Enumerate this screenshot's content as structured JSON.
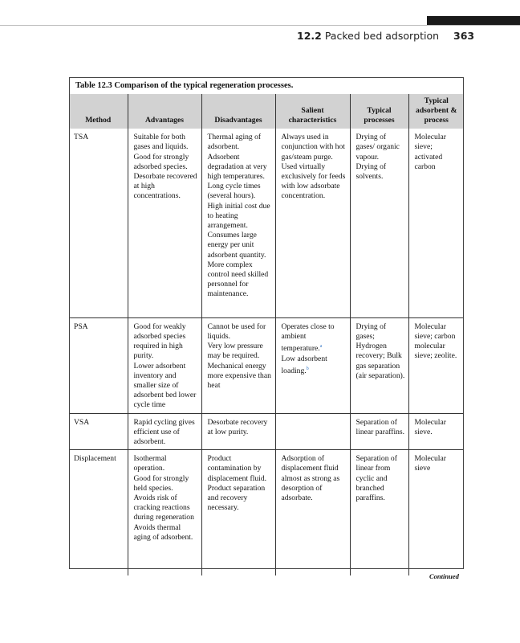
{
  "running_head": {
    "section_number": "12.2",
    "section_title": "Packed bed adsorption",
    "page_number": "363"
  },
  "table": {
    "caption": "Table 12.3  Comparison of the typical regeneration processes.",
    "headers": [
      "Method",
      "Advantages",
      "Disadvantages",
      "Salient characteristics",
      "Typical processes",
      "Typical adsorbent & process"
    ],
    "rows": [
      {
        "method": "TSA",
        "advantages": [
          "Suitable for both gases and liquids.",
          "Good for strongly adsorbed species.",
          "Desorbate recovered at high concentrations."
        ],
        "disadvantages": [
          "Thermal aging of adsorbent.",
          "Adsorbent degradation at very high temperatures.",
          "Long cycle times (several hours).",
          "High initial cost due to heating arrangement.",
          "Consumes large energy per unit adsorbent quantity.",
          "More complex control need skilled personnel for maintenance."
        ],
        "salient": [
          "Always used in conjunction with hot gas/steam purge.",
          "Used virtually exclusively for feeds with low adsorbate concentration."
        ],
        "processes": [
          "Drying of gases/ organic vapour.",
          "Drying of solvents."
        ],
        "adsorbent": [
          "Molecular sieve; activated carbon"
        ]
      },
      {
        "method": "PSA",
        "advantages": [
          "Good for weakly adsorbed species required in high purity.",
          "Lower adsorbent inventory and smaller size of adsorbent bed lower cycle time"
        ],
        "disadvantages": [
          "Cannot be used for liquids.",
          "Very low pressure may be required.",
          "Mechanical energy more expensive than heat"
        ],
        "salient": [
          "Operates close to ambient temperature.",
          "Low adsorbent loading."
        ],
        "salient_footnotes": [
          "a",
          "b"
        ],
        "processes": [
          "Drying of gases; Hydrogen recovery; Bulk gas separation (air separation)."
        ],
        "adsorbent": [
          "Molecular sieve; carbon molecular sieve; zeolite."
        ]
      },
      {
        "method": "VSA",
        "advantages": [
          "Rapid cycling gives efficient use of adsorbent."
        ],
        "disadvantages": [
          "Desorbate recovery at low purity."
        ],
        "salient": [],
        "processes": [
          "Separation of linear paraffins."
        ],
        "adsorbent": [
          "Molecular sieve."
        ]
      },
      {
        "method": "Displacement",
        "advantages": [
          "Isothermal operation.",
          "Good for strongly held species.",
          "Avoids risk of cracking reactions during regeneration",
          "Avoids thermal aging of adsorbent."
        ],
        "disadvantages": [
          "Product contamination by displacement fluid.",
          "Product separation and recovery necessary."
        ],
        "salient": [
          "Adsorption of displacement fluid almost as strong as desorption of adsorbate."
        ],
        "processes": [
          "Separation of linear from cyclic and branched paraffins."
        ],
        "adsorbent": [
          "Molecular sieve"
        ]
      }
    ],
    "continued_label": "Continued"
  },
  "colors": {
    "header_fill": "#d2d2d2",
    "footnote_link": "#3a7bc8"
  }
}
